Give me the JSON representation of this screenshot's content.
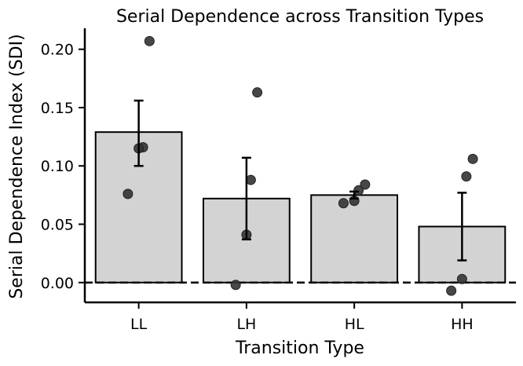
{
  "chart_data": {
    "type": "bar",
    "title": "Serial Dependence across Transition Types",
    "xlabel": "Transition Type",
    "ylabel": "Serial Dependence Index (SDI)",
    "categories": [
      "LL",
      "LH",
      "HL",
      "HH"
    ],
    "values": [
      0.129,
      0.072,
      0.075,
      0.048
    ],
    "error_low": [
      0.1,
      0.037,
      0.072,
      0.019
    ],
    "error_high": [
      0.156,
      0.107,
      0.078,
      0.077
    ],
    "points": [
      [
        0.207,
        0.116,
        0.115,
        0.076
      ],
      [
        0.163,
        0.088,
        0.041,
        -0.002
      ],
      [
        0.084,
        0.079,
        0.07,
        0.068
      ],
      [
        0.106,
        0.091,
        0.003,
        -0.007
      ]
    ],
    "ylim": [
      -0.017,
      0.218
    ],
    "yticks": [
      "0.00",
      "0.05",
      "0.10",
      "0.15",
      "0.20"
    ],
    "ytick_values": [
      0.0,
      0.05,
      0.1,
      0.15,
      0.2
    ],
    "reference_line": 0.0,
    "grid": false,
    "colors": {
      "bar_fill": "#d3d3d3",
      "bar_edge": "#000000",
      "point": "#333333"
    }
  }
}
